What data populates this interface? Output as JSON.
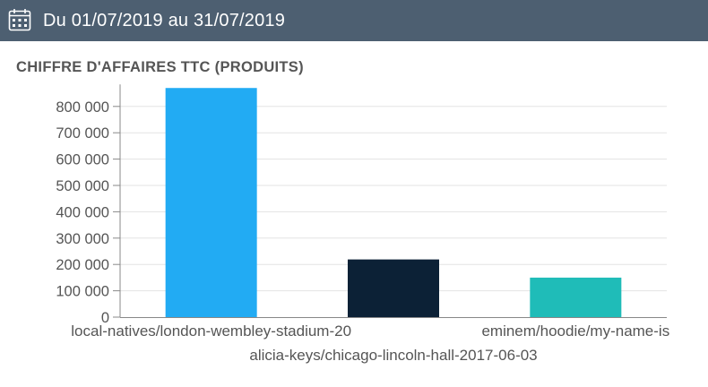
{
  "header": {
    "date_range": "Du 01/07/2019 au 31/07/2019",
    "icon": "calendar-icon"
  },
  "chart_data": {
    "type": "bar",
    "title": "CHIFFRE D'AFFAIRES TTC (PRODUITS)",
    "xlabel": "",
    "ylabel": "",
    "categories": [
      "local-natives/london-wembley-stadium-20",
      "alicia-keys/chicago-lincoln-hall-2017-06-03",
      "eminem/hoodie/my-name-is"
    ],
    "values": [
      870000,
      219000,
      150000
    ],
    "colors": [
      "#22abf3",
      "#0c2136",
      "#1fbcb8"
    ],
    "ylim": [
      0,
      870000
    ],
    "yticks": [
      0,
      100000,
      200000,
      300000,
      400000,
      500000,
      600000,
      700000,
      800000
    ],
    "ytick_labels": [
      "0",
      "100 000",
      "200 000",
      "300 000",
      "400 000",
      "500 000",
      "600 000",
      "700 000",
      "800 000"
    ],
    "grid": true,
    "legend": "none"
  }
}
